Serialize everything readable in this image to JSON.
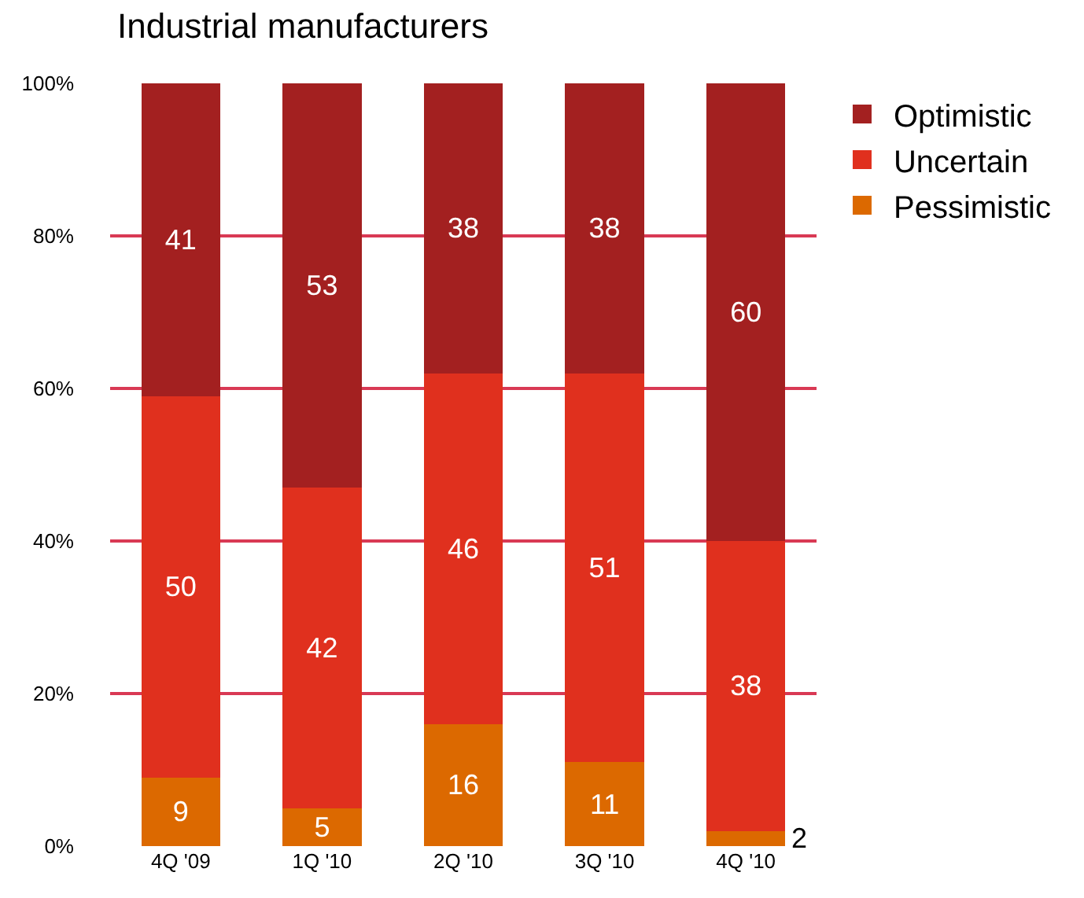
{
  "chart_data": {
    "type": "bar",
    "title": "Industrial manufacturers",
    "stacked": true,
    "categories": [
      "4Q '09",
      "1Q '10",
      "2Q '10",
      "3Q '10",
      "4Q '10"
    ],
    "series": [
      {
        "name": "Pessimistic",
        "color": "#dc6900",
        "values": [
          9,
          5,
          16,
          11,
          2
        ]
      },
      {
        "name": "Uncertain",
        "color": "#e0301e",
        "values": [
          50,
          42,
          46,
          51,
          38
        ]
      },
      {
        "name": "Optimistic",
        "color": "#a32020",
        "values": [
          41,
          53,
          38,
          38,
          60
        ]
      }
    ],
    "ylim": [
      0,
      100
    ],
    "yticks": [
      {
        "value": 0,
        "label": "0%"
      },
      {
        "value": 20,
        "label": "20%"
      },
      {
        "value": 40,
        "label": "40%"
      },
      {
        "value": 60,
        "label": "60%"
      },
      {
        "value": 80,
        "label": "80%"
      },
      {
        "value": 100,
        "label": "100%"
      }
    ],
    "grid": "y",
    "legend": "top right",
    "data_labels": true
  }
}
